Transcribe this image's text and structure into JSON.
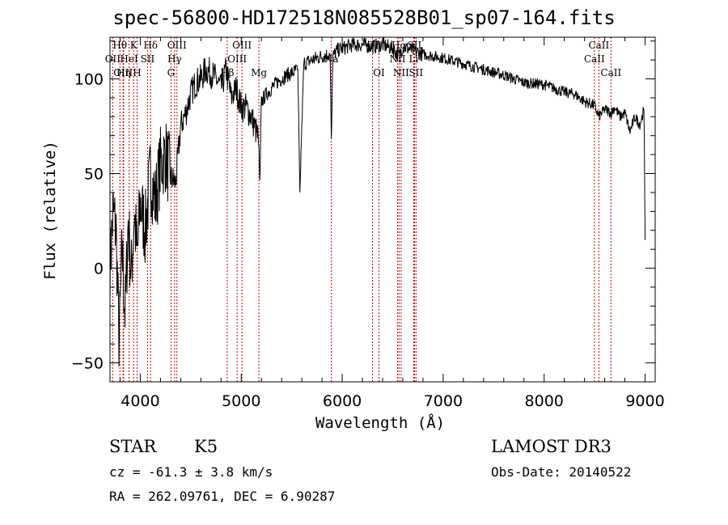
{
  "title": "spec-56800-HD172518N085528B01_sp07-164.fits",
  "info": {
    "star": "STAR",
    "subclass": "K5",
    "survey": "LAMOST DR3",
    "cz": "cz = -61.3 ± 3.8 km/s",
    "obsdate": "Obs-Date: 20140522",
    "coords": "RA = 262.09761, DEC =    6.90287"
  },
  "chart_data": {
    "type": "line",
    "title": "spec-56800-HD172518N085528B01_sp07-164.fits",
    "xlabel": "Wavelength (Å)",
    "ylabel": "Flux (relative)",
    "xlim": [
      3700,
      9100
    ],
    "ylim": [
      -60,
      122
    ],
    "xticks": [
      4000,
      5000,
      6000,
      7000,
      8000,
      9000
    ],
    "yticks": [
      -50,
      0,
      50,
      100
    ],
    "series": [
      {
        "name": "spectrum",
        "x": [
          3700,
          3730,
          3760,
          3790,
          3820,
          3850,
          3880,
          3910,
          3940,
          3970,
          4000,
          4050,
          4100,
          4150,
          4200,
          4250,
          4300,
          4350,
          4400,
          4450,
          4500,
          4550,
          4600,
          4650,
          4700,
          4750,
          4800,
          4850,
          4900,
          4950,
          5000,
          5050,
          5100,
          5150,
          5170,
          5185,
          5200,
          5250,
          5300,
          5350,
          5400,
          5450,
          5500,
          5560,
          5580,
          5620,
          5700,
          5800,
          5880,
          5893,
          5906,
          5950,
          6000,
          6100,
          6200,
          6300,
          6400,
          6500,
          6563,
          6600,
          6700,
          6800,
          6900,
          7000,
          7200,
          7400,
          7600,
          7800,
          8000,
          8200,
          8300,
          8400,
          8498,
          8542,
          8600,
          8662,
          8700,
          8750,
          8800,
          8850,
          8900,
          8950,
          8990,
          9000
        ],
        "y": [
          0,
          30,
          20,
          -40,
          10,
          -25,
          25,
          -5,
          30,
          5,
          35,
          20,
          50,
          35,
          55,
          60,
          48,
          45,
          75,
          82,
          92,
          98,
          100,
          105,
          103,
          100,
          95,
          105,
          90,
          95,
          85,
          85,
          80,
          72,
          68,
          45,
          88,
          92,
          95,
          98,
          100,
          102,
          103,
          105,
          40,
          108,
          110,
          112,
          113,
          65,
          112,
          115,
          116,
          118,
          118,
          117,
          118,
          116,
          112,
          117,
          115,
          113,
          112,
          111,
          108,
          105,
          102,
          98,
          97,
          93,
          92,
          88,
          86,
          80,
          84,
          82,
          85,
          80,
          82,
          72,
          80,
          76,
          84,
          15
        ]
      }
    ],
    "lines": [
      {
        "label": "OII",
        "wavelength": 3727,
        "row": 1
      },
      {
        "label": "Hθ",
        "wavelength": 3798,
        "row": 0
      },
      {
        "label": "OIII",
        "wavelength": 3830,
        "row": 2
      },
      {
        "label": "HeI",
        "wavelength": 3889,
        "row": 1
      },
      {
        "label": "Hη",
        "wavelength": 3835,
        "row": 2
      },
      {
        "label": "K",
        "wavelength": 3934,
        "row": 0
      },
      {
        "label": "H",
        "wavelength": 3968,
        "row": 2
      },
      {
        "label": "Hδ",
        "wavelength": 4102,
        "row": 0
      },
      {
        "label": "SII",
        "wavelength": 4072,
        "row": 1
      },
      {
        "label": "OIII",
        "wavelength": 4363,
        "row": 0
      },
      {
        "label": "Hγ",
        "wavelength": 4340,
        "row": 1
      },
      {
        "label": "G",
        "wavelength": 4304,
        "row": 2
      },
      {
        "label": "OIII",
        "wavelength": 5007,
        "row": 0
      },
      {
        "label": "OIII",
        "wavelength": 4959,
        "row": 1
      },
      {
        "label": "Hβ",
        "wavelength": 4861,
        "row": 2
      },
      {
        "label": "Mg",
        "wavelength": 5175,
        "row": 2
      },
      {
        "label": "Na",
        "wavelength": 5893,
        "row": 1
      },
      {
        "label": "OI",
        "wavelength": 6300,
        "row": 0
      },
      {
        "label": "OI",
        "wavelength": 6364,
        "row": 2
      },
      {
        "label": "NII",
        "wavelength": 6548,
        "row": 1
      },
      {
        "label": "Hα",
        "wavelength": 6563,
        "row": 0
      },
      {
        "label": "NII",
        "wavelength": 6583,
        "row": 2
      },
      {
        "label": "SII",
        "wavelength": 6716,
        "row": 0
      },
      {
        "label": "Li",
        "wavelength": 6708,
        "row": 1
      },
      {
        "label": "SII",
        "wavelength": 6731,
        "row": 2
      },
      {
        "label": "CaII",
        "wavelength": 8498,
        "row": 1
      },
      {
        "label": "CaII",
        "wavelength": 8542,
        "row": 0
      },
      {
        "label": "CaII",
        "wavelength": 8662,
        "row": 2
      }
    ]
  }
}
